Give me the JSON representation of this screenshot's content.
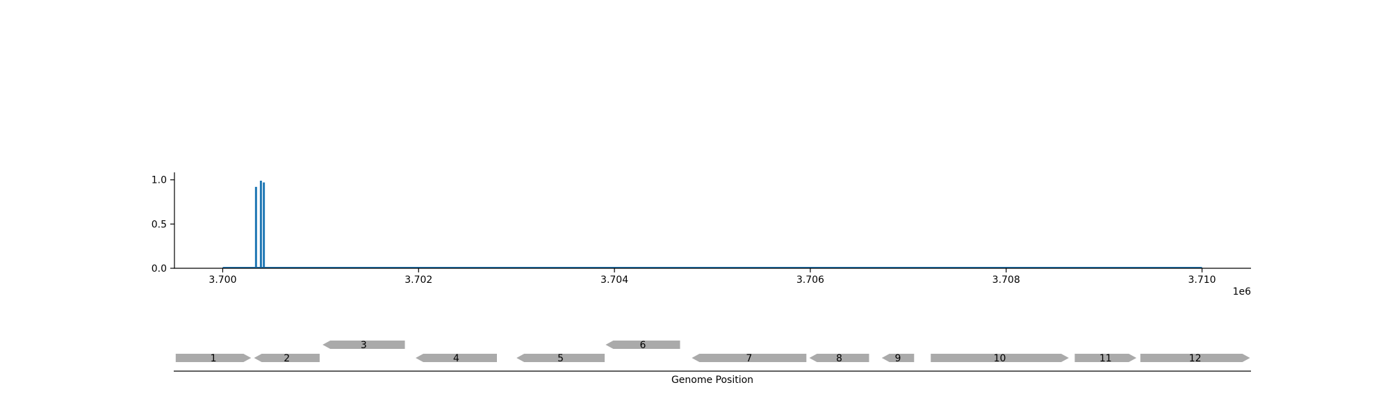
{
  "chart_data": [
    {
      "type": "bar",
      "title": "",
      "xlabel": "",
      "ylabel": "",
      "xlim": [
        3699500,
        3710500
      ],
      "ylim": [
        0,
        1.1
      ],
      "x_offset_label": "1e6",
      "x_ticks": [
        3700000,
        3702000,
        3704000,
        3706000,
        3708000,
        3710000
      ],
      "x_tick_labels": [
        "3.700",
        "3.702",
        "3.704",
        "3.706",
        "3.708",
        "3.710"
      ],
      "y_ticks": [
        0.0,
        0.5,
        1.0
      ],
      "y_tick_labels": [
        "0.0",
        "0.5",
        "1.0"
      ],
      "grid": false,
      "baseline": {
        "x": [
          3700000,
          3710000
        ],
        "y": 0
      },
      "series": [
        {
          "color": "#1f77b4",
          "points": [
            {
              "x": 3700340,
              "y": 0.92
            },
            {
              "x": 3700390,
              "y": 0.99
            },
            {
              "x": 3700420,
              "y": 0.97
            }
          ]
        }
      ]
    },
    {
      "type": "gene_track",
      "xlabel": "Genome Position",
      "xlim": [
        3699500,
        3710500
      ],
      "feature_color": "#aaaaaa",
      "genes": [
        {
          "label": "1",
          "start": 3699520,
          "end": 3700290,
          "strand": "+",
          "row": 0
        },
        {
          "label": "2",
          "start": 3700320,
          "end": 3700990,
          "strand": "-",
          "row": 0
        },
        {
          "label": "3",
          "start": 3701020,
          "end": 3701860,
          "strand": "-",
          "row": 1
        },
        {
          "label": "4",
          "start": 3701970,
          "end": 3702800,
          "strand": "-",
          "row": 0
        },
        {
          "label": "5",
          "start": 3703000,
          "end": 3703900,
          "strand": "-",
          "row": 0
        },
        {
          "label": "6",
          "start": 3703910,
          "end": 3704670,
          "strand": "-",
          "row": 1
        },
        {
          "label": "7",
          "start": 3704790,
          "end": 3705960,
          "strand": "-",
          "row": 0
        },
        {
          "label": "8",
          "start": 3705990,
          "end": 3706600,
          "strand": "-",
          "row": 0
        },
        {
          "label": "9",
          "start": 3706730,
          "end": 3707060,
          "strand": "-",
          "row": 0
        },
        {
          "label": "10",
          "start": 3707230,
          "end": 3708640,
          "strand": "+",
          "row": 0
        },
        {
          "label": "11",
          "start": 3708700,
          "end": 3709330,
          "strand": "+",
          "row": 0
        },
        {
          "label": "12",
          "start": 3709370,
          "end": 3710490,
          "strand": "+",
          "row": 0
        }
      ]
    }
  ]
}
